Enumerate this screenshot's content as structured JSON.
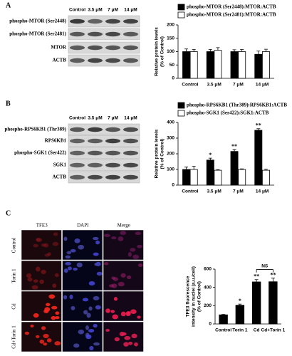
{
  "panels": [
    "A",
    "B",
    "C"
  ],
  "blots": [
    {
      "columns": [
        "Control",
        "3.5 μM",
        "7 μM",
        "14 μM"
      ],
      "rows": [
        "phospho-MTOR (Ser2448)",
        "phospho-MTOR (Ser2481)",
        "MTOR",
        "ACTB"
      ]
    },
    {
      "columns": [
        "Control",
        "3.5 μM",
        "7 μM",
        "14 μM"
      ],
      "rows": [
        "phospho-RPS6KB1 (Thr389)",
        "RPS6KB1",
        "phospho-SGK1 (Ser422)",
        "SGK1",
        "ACTB"
      ]
    }
  ],
  "microscopy": {
    "columns": [
      "TFE3",
      "DAPI",
      "Merge"
    ],
    "rows": [
      "Control",
      "Torin 1",
      "Cd",
      "Cd+Torin 1"
    ]
  },
  "chart_data": [
    {
      "type": "bar",
      "ylabel": [
        "Relative protein levels",
        "(% of Control)"
      ],
      "categories": [
        "Control",
        "3.5 μM",
        "7 μM",
        "14 μM"
      ],
      "series": [
        {
          "name": "phospho-MTOR (Ser2448):MTOR:ACTB",
          "color": "#000000",
          "values": [
            100,
            100,
            100,
            90
          ],
          "errors": [
            10,
            8,
            7,
            12
          ]
        },
        {
          "name": "phospho-MTOR (Ser2481):MTOR:ACTB",
          "color": "#ffffff",
          "values": [
            100,
            105,
            100,
            100
          ],
          "errors": [
            8,
            10,
            8,
            9
          ]
        }
      ],
      "ylim": [
        0,
        200
      ],
      "yticks": [
        0,
        50,
        100,
        150,
        200
      ]
    },
    {
      "type": "bar",
      "ylabel": [
        "Relative protein levels",
        "(% of Control)"
      ],
      "categories": [
        "Control",
        "3.5 μM",
        "7 μM",
        "14 μM"
      ],
      "series": [
        {
          "name": "phospho-RPS6KB1 (Thr389):RPS6KB1:ACTB",
          "color": "#000000",
          "values": [
            100,
            160,
            215,
            350
          ],
          "errors": [
            15,
            12,
            12,
            10
          ],
          "significance": [
            null,
            "*",
            "**",
            "**"
          ]
        },
        {
          "name": "phospho-SGK1 (Ser422):SGK1:ACTB",
          "color": "#ffffff",
          "values": [
            100,
            95,
            100,
            95
          ],
          "errors": [
            20,
            4,
            4,
            8
          ]
        }
      ],
      "ylim": [
        0,
        400
      ],
      "yticks": [
        0,
        100,
        200,
        300,
        400
      ]
    },
    {
      "type": "bar",
      "ylabel": [
        "TFE3 fluorescence",
        "intensity in nuclei (a.u./cell)",
        "(% of Control)"
      ],
      "categories": [
        "Control",
        "Torin 1",
        "Cd",
        "Cd+Torin 1"
      ],
      "series": [
        {
          "color": "#000000",
          "values": [
            100,
            205,
            460,
            462
          ],
          "errors": [
            4,
            12,
            25,
            40
          ],
          "significance": [
            null,
            "*",
            "**",
            "**"
          ]
        }
      ],
      "brackets": [
        {
          "text": "NS",
          "from": "Cd",
          "to": "Cd+Torin 1"
        }
      ],
      "ylim": [
        0,
        600
      ],
      "yticks": [
        0,
        200,
        400,
        600
      ]
    }
  ]
}
